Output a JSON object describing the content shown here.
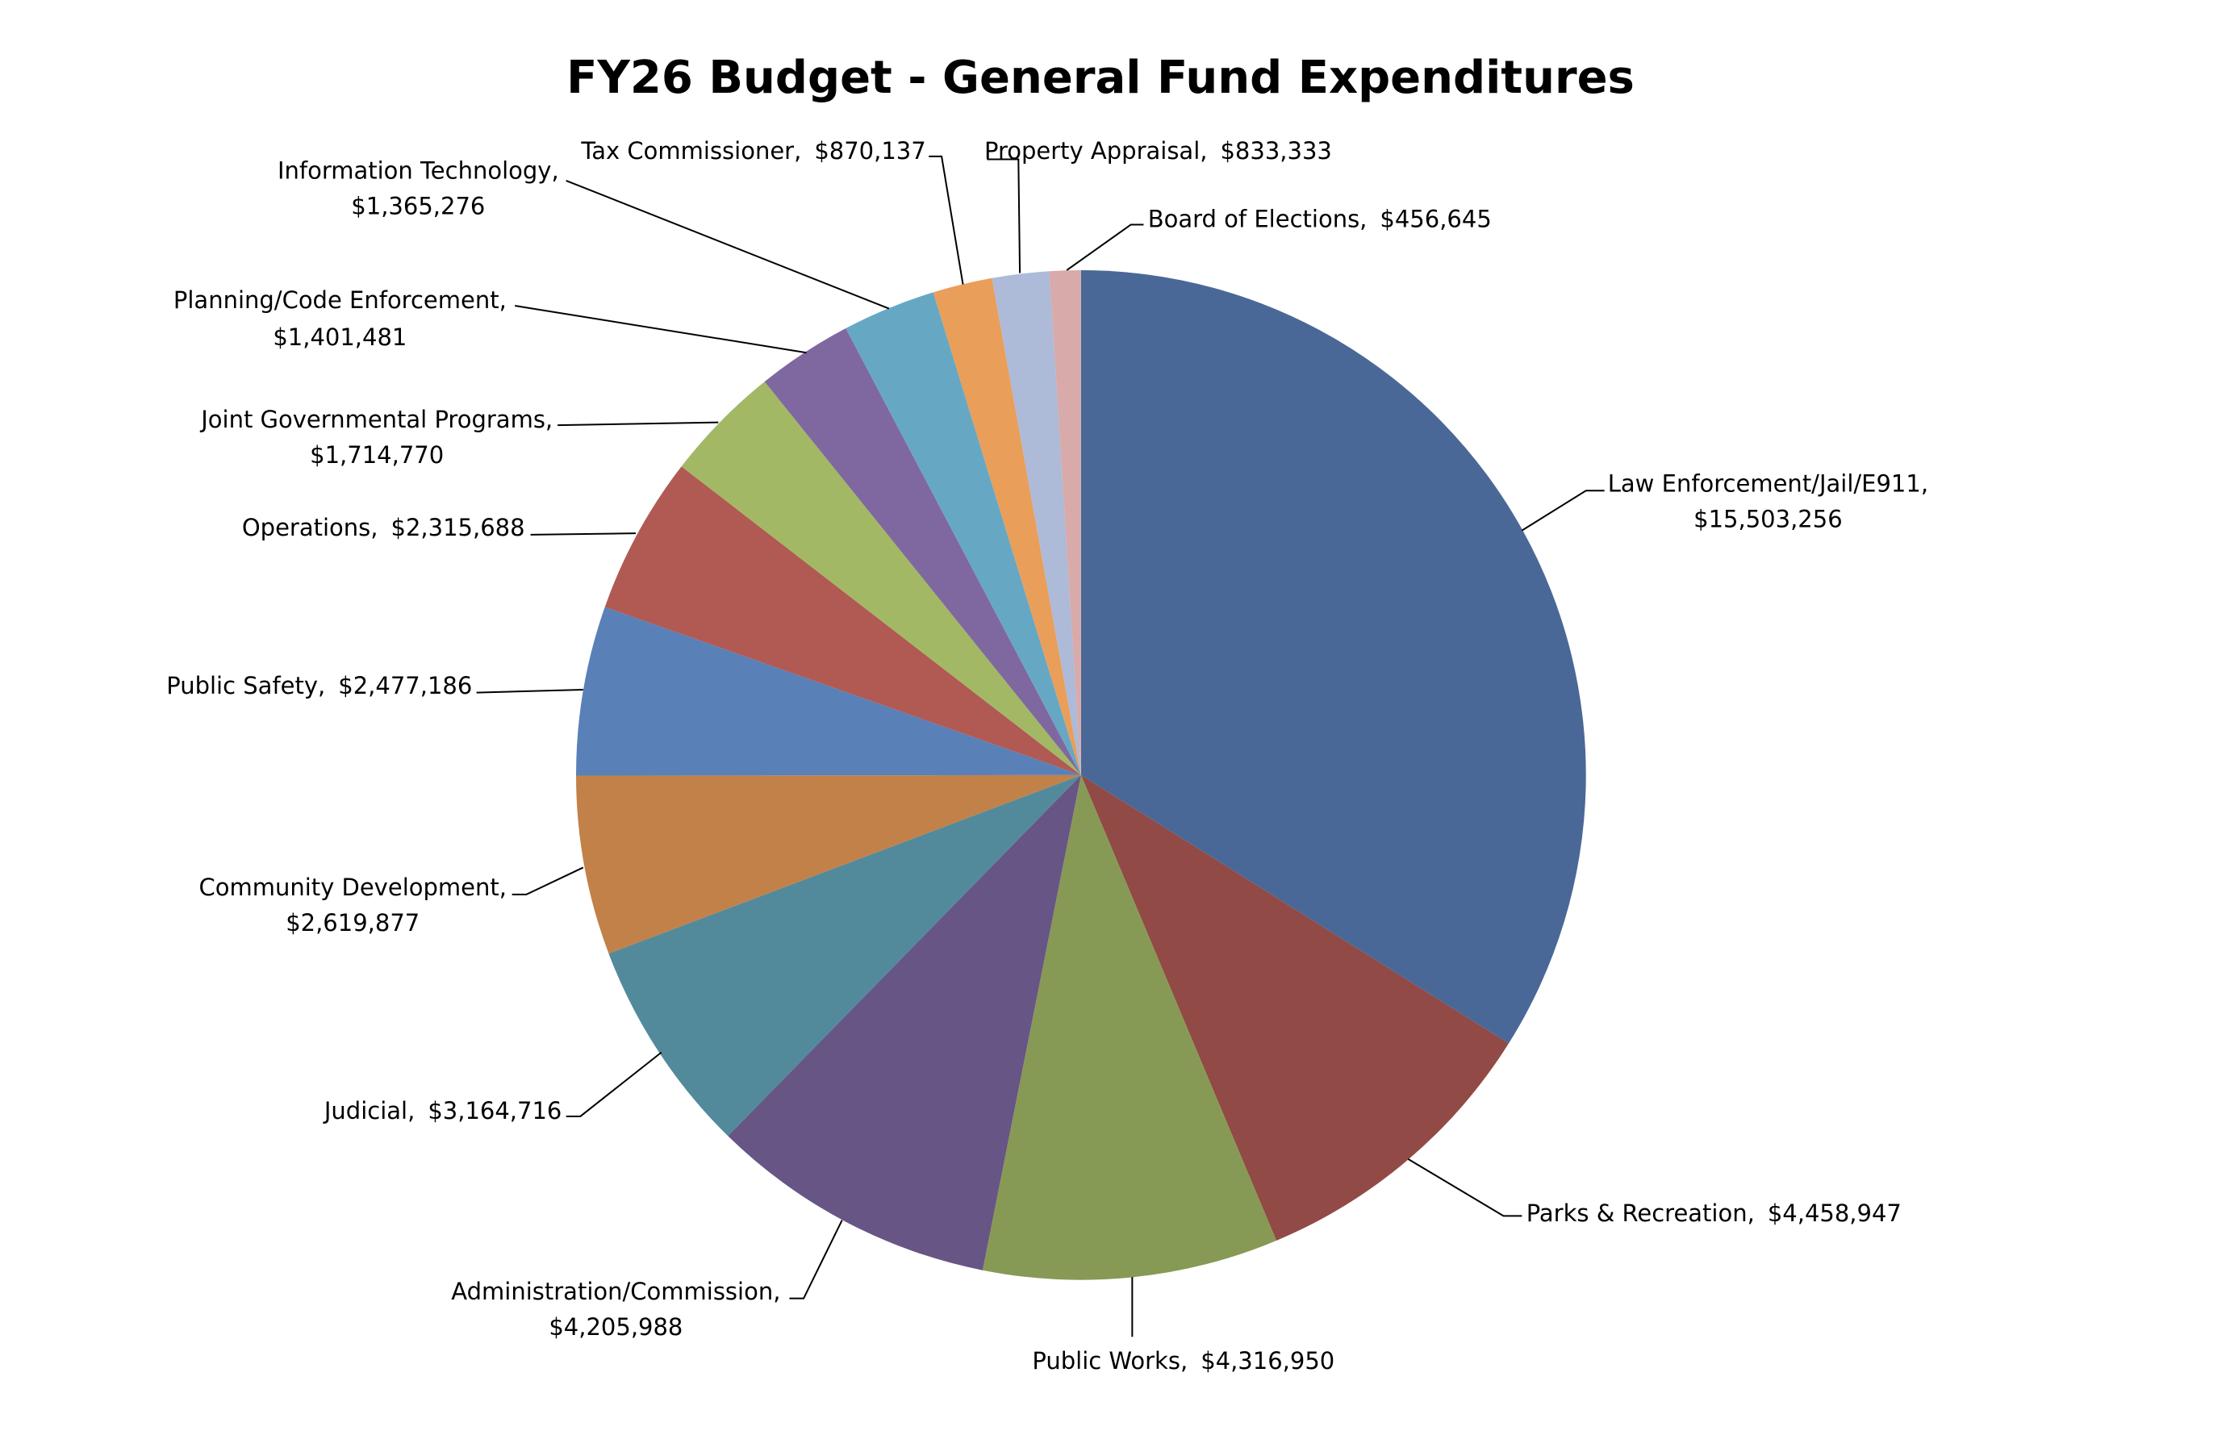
{
  "chart_data": {
    "type": "pie",
    "title": "FY26 Budget - General Fund Expenditures",
    "categories": [
      "Law Enforcement/Jail/E911,",
      "Parks & Recreation,",
      "Public Works,",
      "Administration/Commission,",
      "Judicial,",
      "Community Development,",
      "Public Safety,",
      "Operations,",
      "Joint Governmental Programs,",
      "Planning/Code Enforcement,",
      "Information Technology,",
      "Tax Commissioner,",
      "Property Appraisal,",
      "Board of Elections,"
    ],
    "values": [
      15503256,
      4458947,
      4316950,
      4205988,
      3164716,
      2619877,
      2477186,
      2315688,
      1714770,
      1401481,
      1365276,
      870137,
      833333,
      456645
    ],
    "value_labels": [
      "$15,503,256",
      "$4,458,947",
      "$4,316,950",
      "$4,205,988",
      "$3,164,716",
      "$2,619,877",
      "$2,477,186",
      "$2,315,688",
      "$1,714,770",
      "$1,401,481",
      "$1,365,276",
      "$870,137",
      "$833,333",
      "$456,645"
    ],
    "colors": [
      "#4a6897",
      "#914a45",
      "#879a55",
      "#675585",
      "#528a9c",
      "#c28148",
      "#5a80b8",
      "#b05a53",
      "#a2b865",
      "#7f68a0",
      "#66a8c4",
      "#e99e5a",
      "#adbad8",
      "#d8aaa9"
    ]
  }
}
